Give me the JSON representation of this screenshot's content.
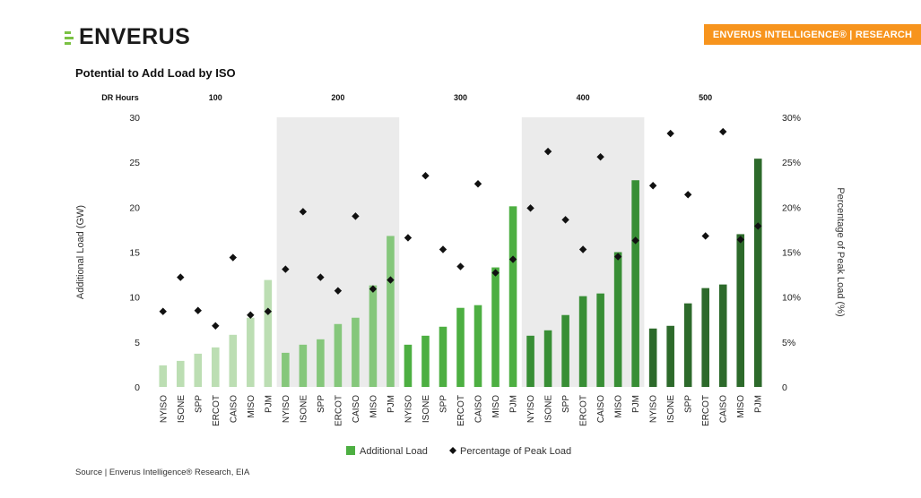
{
  "header": {
    "logo_text": "ENVERUS",
    "banner_text": "ENVERUS INTELLIGENCE® | RESEARCH",
    "source": "Source | Enverus Intelligence® Research, EIA"
  },
  "colors": {
    "banner": "#f7941d",
    "logo_accent": "#7ac143",
    "shade": "#ebebeb",
    "marker": "#111111"
  },
  "chart_data": {
    "type": "bar",
    "title": "Potential to Add Load by ISO",
    "group_axis_label": "DR Hours",
    "groups": [
      "100",
      "200",
      "300",
      "400",
      "500"
    ],
    "group_colors": [
      "#bcdeb3",
      "#85c77b",
      "#4daf42",
      "#388e35",
      "#2d6a2b"
    ],
    "shaded_groups": [
      1,
      3
    ],
    "categories": [
      "NYISO",
      "ISONE",
      "SPP",
      "ERCOT",
      "CAISO",
      "MISO",
      "PJM"
    ],
    "ylabel": "Additional Load (GW)",
    "y2label": "Percentage of Peak Load (%)",
    "ylim": [
      0,
      30
    ],
    "y_ticks": [
      "0",
      "5",
      "10",
      "15",
      "20",
      "25",
      "30"
    ],
    "y2lim": [
      0,
      30
    ],
    "y2_ticks": [
      "0",
      "5%",
      "10%",
      "15%",
      "20%",
      "25%",
      "30%"
    ],
    "series": [
      {
        "name": "Additional Load",
        "kind": "bar",
        "values": [
          [
            2.4,
            2.9,
            3.7,
            4.4,
            5.8,
            7.7,
            11.9
          ],
          [
            3.8,
            4.7,
            5.3,
            7.0,
            7.7,
            11.3,
            16.8
          ],
          [
            4.7,
            5.7,
            6.7,
            8.8,
            9.1,
            13.3,
            20.1
          ],
          [
            5.7,
            6.3,
            8.0,
            10.1,
            10.4,
            15.0,
            23.0
          ],
          [
            6.5,
            6.8,
            9.3,
            11.0,
            11.4,
            17.0,
            25.4
          ]
        ]
      },
      {
        "name": "Percentage of Peak Load",
        "kind": "marker",
        "axis": "right",
        "values": [
          [
            8.4,
            12.2,
            8.5,
            6.8,
            14.4,
            8.0,
            8.4
          ],
          [
            13.1,
            19.5,
            12.2,
            10.7,
            19.0,
            10.9,
            11.9
          ],
          [
            16.6,
            23.5,
            15.3,
            13.4,
            22.6,
            12.7,
            14.2
          ],
          [
            19.9,
            26.2,
            18.6,
            15.3,
            25.6,
            14.5,
            16.3
          ],
          [
            22.4,
            28.2,
            21.4,
            16.8,
            28.4,
            16.4,
            17.9
          ]
        ]
      }
    ],
    "legend": [
      "Additional Load",
      "Percentage of Peak Load"
    ],
    "legend_position": "bottom"
  }
}
